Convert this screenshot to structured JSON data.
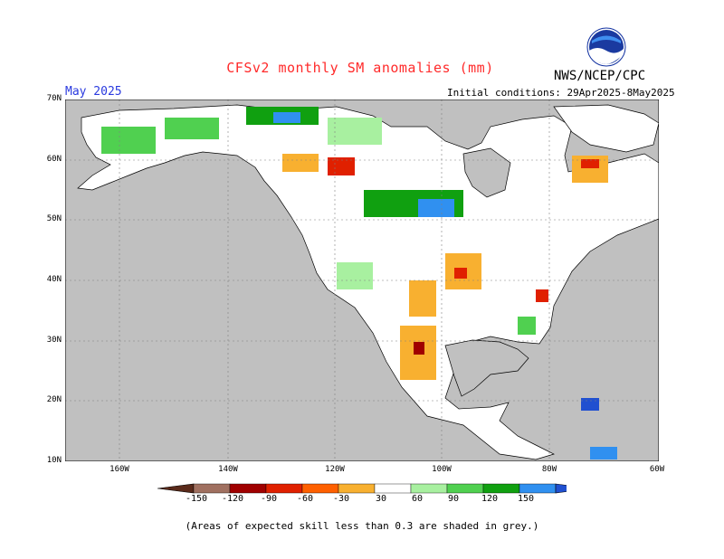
{
  "header": {
    "title": "CFSv2 monthly SM anomalies (mm)",
    "org": "NWS/NCEP/CPC",
    "logo_text": "NOAA",
    "month": "May 2025",
    "initial_conditions": "Initial conditions: 29Apr2025-8May2025"
  },
  "axes": {
    "lat_labels": [
      "70N",
      "60N",
      "50N",
      "40N",
      "30N",
      "20N",
      "10N"
    ],
    "lon_labels": [
      "160W",
      "140W",
      "120W",
      "100W",
      "80W",
      "60W"
    ]
  },
  "legend": {
    "labels": [
      "-150",
      "-120",
      "-90",
      "-60",
      "-30",
      "30",
      "60",
      "90",
      "120",
      "150"
    ],
    "colors": [
      "#5a2a1a",
      "#a07060",
      "#a00000",
      "#e02000",
      "#ff6000",
      "#f8b030",
      "#ffffff",
      "#a8f0a0",
      "#50d050",
      "#10a010",
      "#3090f0",
      "#2050d0"
    ]
  },
  "colors": {
    "land": "#ffffff",
    "grey_skill_mask": "#c0c0c0",
    "title": "#ff2a2a",
    "month": "#2a3adf"
  },
  "footnote": "(Areas of expected skill less than 0.3 are shaded in grey.)"
}
